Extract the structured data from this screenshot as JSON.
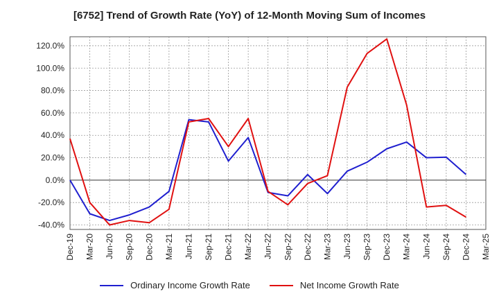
{
  "chart_data": {
    "type": "line",
    "title": "[6752]  Trend of Growth Rate (YoY) of 12-Month Moving Sum of Incomes",
    "xlabel": "",
    "ylabel": "",
    "ylim": [
      -44,
      128
    ],
    "x": [
      "Dec-19",
      "Mar-20",
      "Jun-20",
      "Sep-20",
      "Dec-20",
      "Mar-21",
      "Jun-21",
      "Sep-21",
      "Dec-21",
      "Mar-22",
      "Jun-22",
      "Sep-22",
      "Dec-22",
      "Mar-23",
      "Jun-23",
      "Sep-23",
      "Dec-23",
      "Mar-24",
      "Jun-24",
      "Sep-24",
      "Dec-24",
      "Mar-25"
    ],
    "y_ticks": [
      "120.0%",
      "100.0%",
      "80.0%",
      "60.0%",
      "40.0%",
      "20.0%",
      "0.0%",
      "-20.0%",
      "-40.0%"
    ],
    "y_tick_values": [
      120,
      100,
      80,
      60,
      40,
      20,
      0,
      -20,
      -40
    ],
    "grid": true,
    "legend_position": "bottom",
    "series": [
      {
        "name": "Ordinary Income Growth Rate",
        "color": "#1f1fcf",
        "values": [
          0.0,
          -30.0,
          -36.0,
          -31.0,
          -24.0,
          -10.0,
          54.0,
          52.0,
          17.0,
          38.0,
          -11.0,
          -14.0,
          5.0,
          -12.0,
          8.0,
          16.0,
          28.0,
          34.0,
          20.0,
          20.5,
          5.0,
          null
        ]
      },
      {
        "name": "Net Income Growth Rate",
        "color": "#e01010",
        "values": [
          37.0,
          -20.0,
          -40.0,
          -36.0,
          -38.0,
          -26.0,
          52.0,
          55.0,
          30.0,
          55.0,
          -10.0,
          -22.0,
          -3.0,
          4.0,
          83.0,
          113.0,
          126.0,
          67.0,
          -24.0,
          -22.5,
          -33.0,
          null
        ]
      }
    ]
  }
}
